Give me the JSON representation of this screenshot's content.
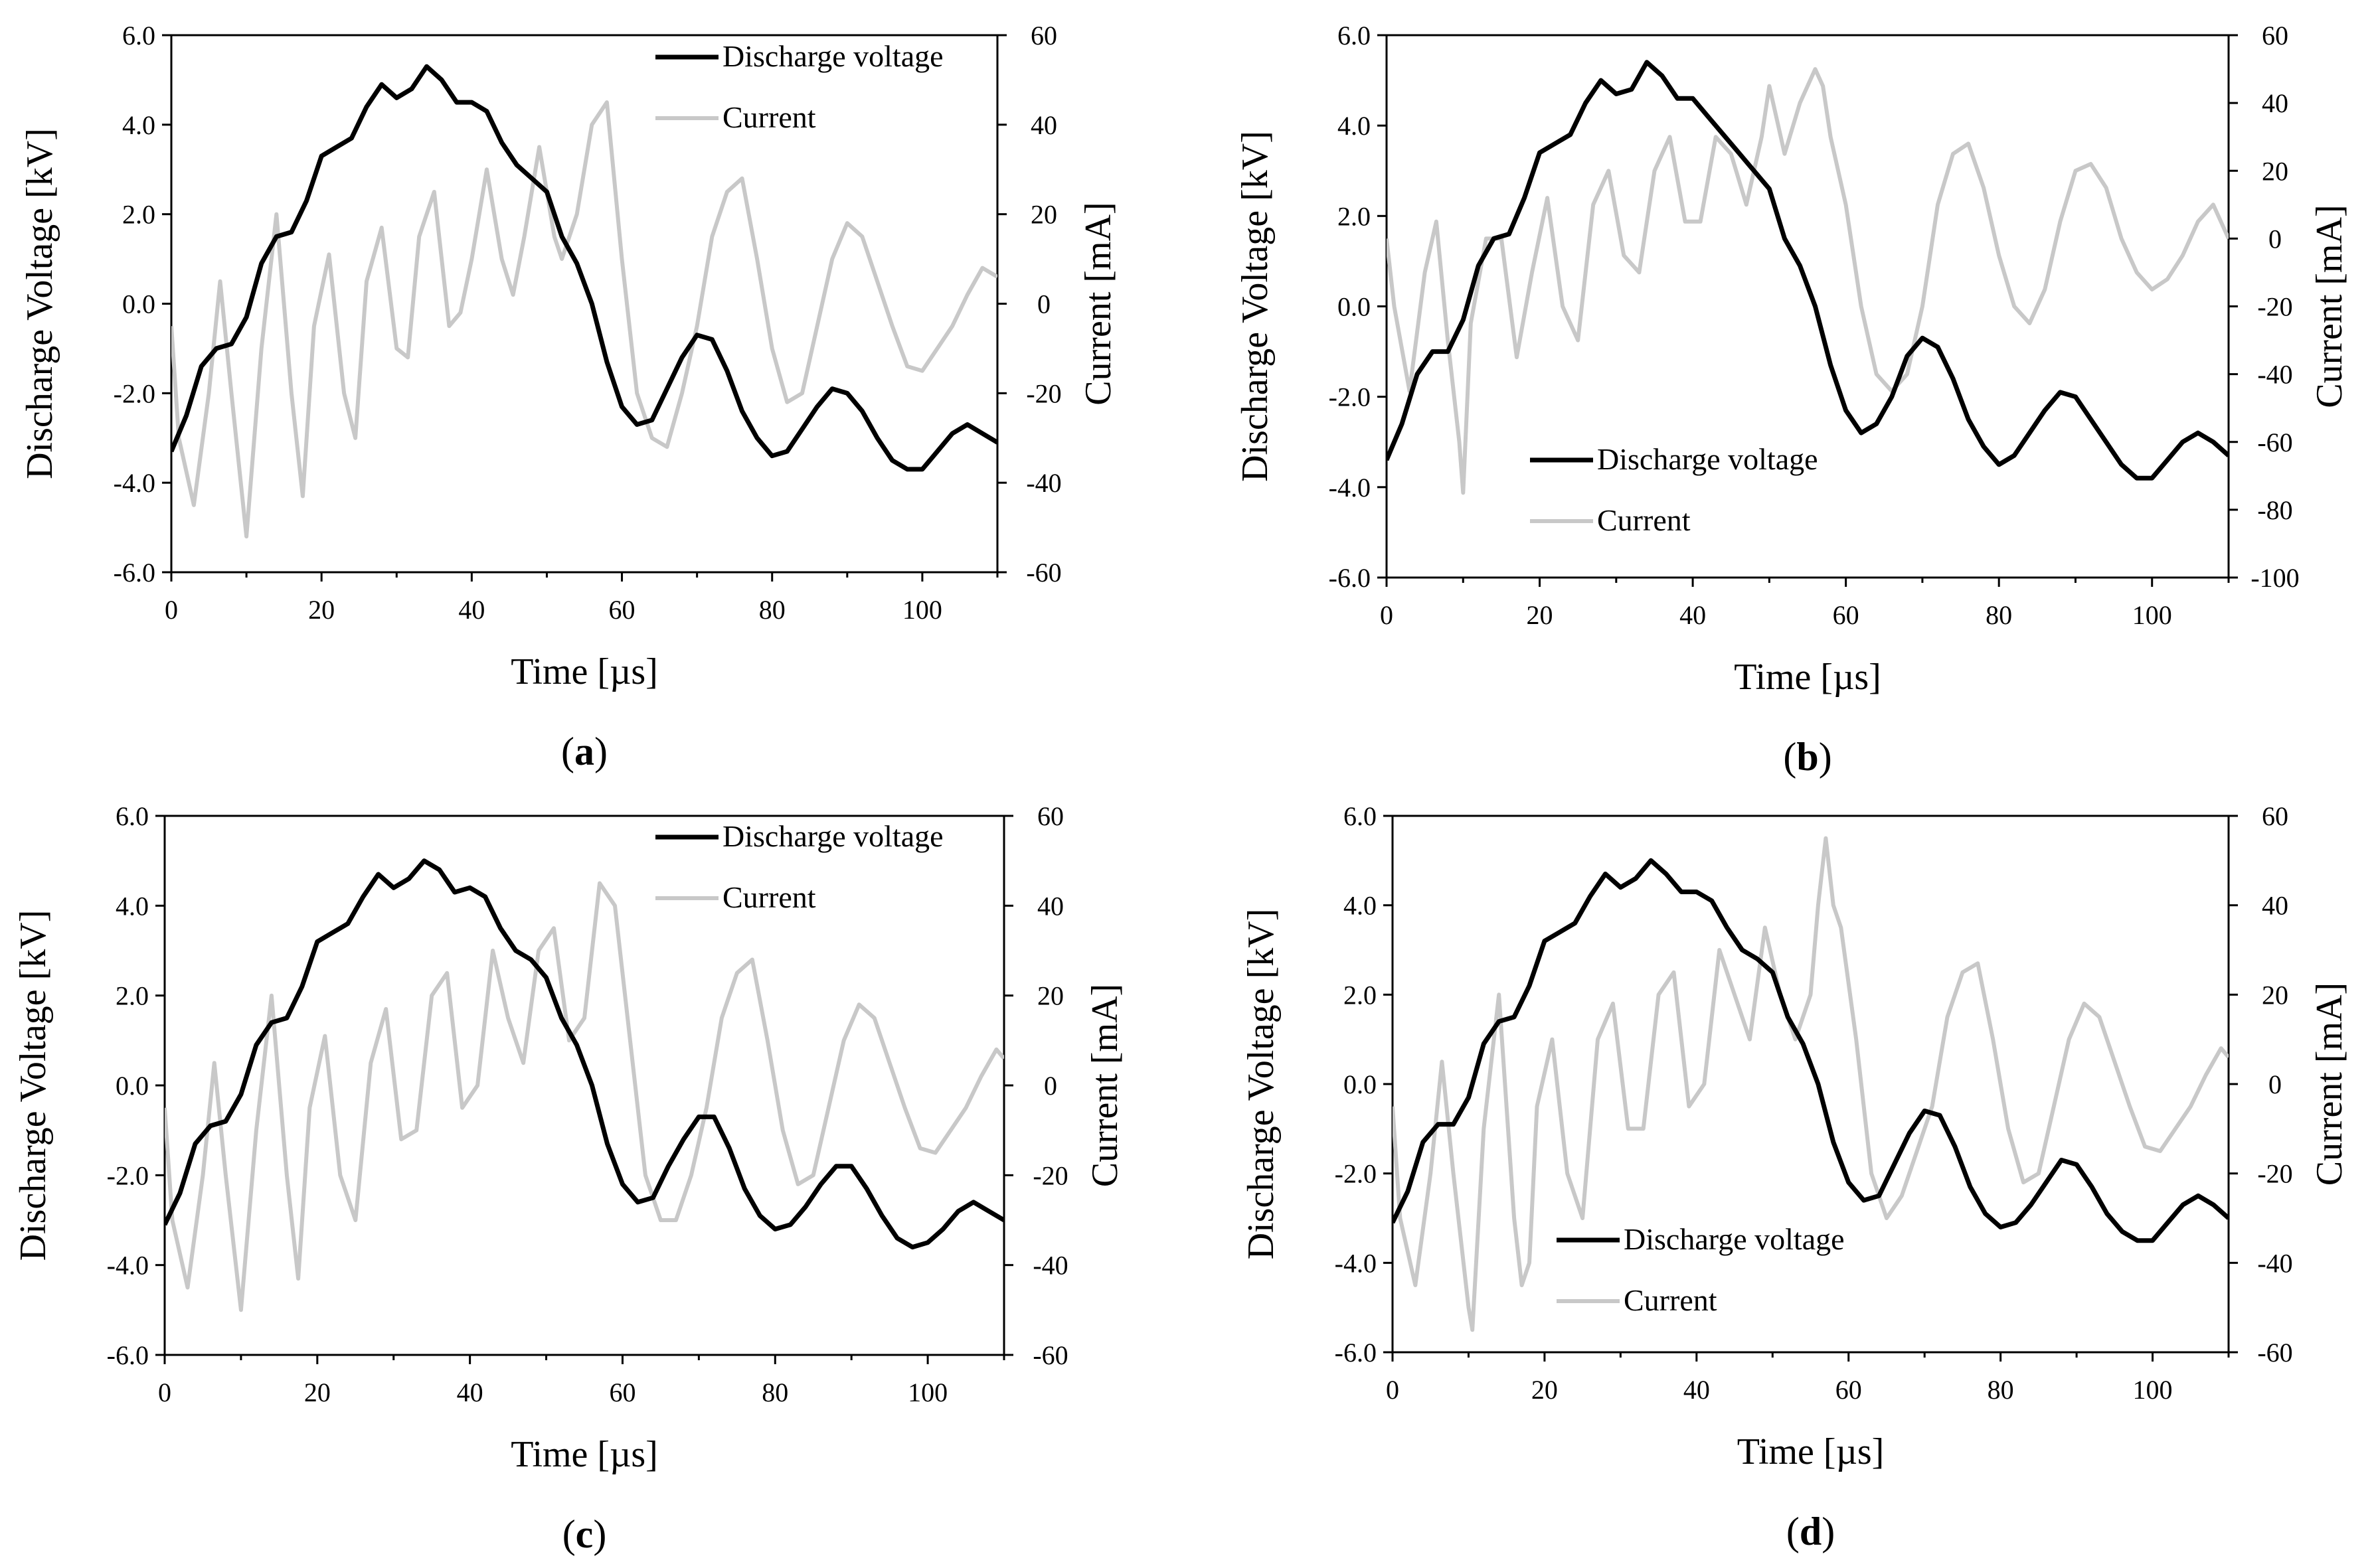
{
  "colors": {
    "voltage": "#000000",
    "current": "#c8c8c8"
  },
  "chart_data": [
    {
      "type": "line",
      "panel_label": "a",
      "title": "",
      "xlabel": "Time [µs]",
      "ylabel": "Discharge  Voltage  [kV]",
      "y2label": "Current  [mA]",
      "xlim": [
        0,
        110
      ],
      "ylim": [
        -6,
        6
      ],
      "y2lim": [
        -60,
        60
      ],
      "xticks": [
        "0",
        "20",
        "40",
        "60",
        "80",
        "100"
      ],
      "yticks": [
        "-6.0",
        "-4.0",
        "-2.0",
        "0.0",
        "2.0",
        "4.0",
        "6.0"
      ],
      "y2ticks": [
        "-60",
        "-40",
        "-20",
        "0",
        "20",
        "40",
        "60"
      ],
      "legend_position": "top-right",
      "series": [
        {
          "name": "Discharge voltage",
          "axis": "left",
          "x": [
            0,
            2,
            4,
            6,
            8,
            10,
            12,
            14,
            16,
            18,
            20,
            22,
            24,
            26,
            28,
            30,
            32,
            34,
            36,
            38,
            40,
            42,
            44,
            46,
            48,
            50,
            52,
            54,
            56,
            58,
            60,
            62,
            64,
            66,
            68,
            70,
            72,
            74,
            76,
            78,
            80,
            82,
            84,
            86,
            88,
            90,
            92,
            94,
            96,
            98,
            100,
            102,
            104,
            106,
            108,
            110
          ],
          "values": [
            -3.3,
            -2.5,
            -1.4,
            -1.0,
            -0.9,
            -0.3,
            0.9,
            1.5,
            1.6,
            2.3,
            3.3,
            3.5,
            3.7,
            4.4,
            4.9,
            4.6,
            4.8,
            5.3,
            5.0,
            4.5,
            4.5,
            4.3,
            3.6,
            3.1,
            2.8,
            2.5,
            1.5,
            0.9,
            0.0,
            -1.3,
            -2.3,
            -2.7,
            -2.6,
            -1.9,
            -1.2,
            -0.7,
            -0.8,
            -1.5,
            -2.4,
            -3.0,
            -3.4,
            -3.3,
            -2.8,
            -2.3,
            -1.9,
            -2.0,
            -2.4,
            -3.0,
            -3.5,
            -3.7,
            -3.7,
            -3.3,
            -2.9,
            -2.7,
            -2.9,
            -3.1
          ]
        },
        {
          "name": "Current",
          "axis": "right",
          "x": [
            0,
            1,
            3,
            5,
            6.5,
            8,
            10,
            12,
            14,
            16,
            17.5,
            19,
            21,
            23,
            24.5,
            26,
            28,
            30,
            31.5,
            33,
            35,
            37,
            38.5,
            40,
            42,
            44,
            45.5,
            47,
            49,
            51,
            52,
            54,
            56,
            58,
            60,
            62,
            64,
            66,
            68,
            70,
            72,
            74,
            76,
            78,
            80,
            82,
            84,
            86,
            88,
            90,
            92,
            94,
            96,
            98,
            100,
            102,
            104,
            106,
            108,
            110
          ],
          "values": [
            -5,
            -30,
            -45,
            -20,
            5,
            -20,
            -52,
            -10,
            20,
            -20,
            -43,
            -5,
            11,
            -20,
            -30,
            5,
            17,
            -10,
            -12,
            15,
            25,
            -5,
            -2,
            10,
            30,
            10,
            2,
            15,
            35,
            15,
            10,
            20,
            40,
            45,
            10,
            -20,
            -30,
            -32,
            -20,
            -5,
            15,
            25,
            28,
            10,
            -10,
            -22,
            -20,
            -5,
            10,
            18,
            15,
            5,
            -5,
            -14,
            -15,
            -10,
            -5,
            2,
            8,
            6
          ]
        }
      ]
    },
    {
      "type": "line",
      "panel_label": "b",
      "title": "",
      "xlabel": "Time [µs]",
      "ylabel": "Discharge  Voltage  [kV]",
      "y2label": "Current  [mA]",
      "xlim": [
        0,
        110
      ],
      "ylim": [
        -6,
        6
      ],
      "y2lim": [
        -100,
        60
      ],
      "xticks": [
        "0",
        "20",
        "40",
        "60",
        "80",
        "100"
      ],
      "yticks": [
        "-6.0",
        "-4.0",
        "-2.0",
        "0.0",
        "2.0",
        "4.0",
        "6.0"
      ],
      "y2ticks": [
        "-100",
        "-80",
        "-60",
        "-40",
        "-20",
        "0",
        "20",
        "40",
        "60"
      ],
      "legend_position": "bottom-left",
      "series": [
        {
          "name": "Discharge voltage",
          "axis": "left",
          "x": [
            0,
            2,
            4,
            6,
            8,
            10,
            12,
            14,
            16,
            18,
            20,
            22,
            24,
            26,
            28,
            30,
            32,
            34,
            36,
            38,
            40,
            42,
            44,
            46,
            48,
            50,
            52,
            54,
            56,
            58,
            60,
            62,
            64,
            66,
            68,
            70,
            72,
            74,
            76,
            78,
            80,
            82,
            84,
            86,
            88,
            90,
            92,
            94,
            96,
            98,
            100,
            102,
            104,
            106,
            108,
            110
          ],
          "values": [
            -3.4,
            -2.6,
            -1.5,
            -1.0,
            -1.0,
            -0.3,
            0.9,
            1.5,
            1.6,
            2.4,
            3.4,
            3.6,
            3.8,
            4.5,
            5.0,
            4.7,
            4.8,
            5.4,
            5.1,
            4.6,
            4.6,
            4.2,
            3.8,
            3.4,
            3.0,
            2.6,
            1.5,
            0.9,
            0.0,
            -1.3,
            -2.3,
            -2.8,
            -2.6,
            -2.0,
            -1.1,
            -0.7,
            -0.9,
            -1.6,
            -2.5,
            -3.1,
            -3.5,
            -3.3,
            -2.8,
            -2.3,
            -1.9,
            -2.0,
            -2.5,
            -3.0,
            -3.5,
            -3.8,
            -3.8,
            -3.4,
            -3.0,
            -2.8,
            -3.0,
            -3.3
          ]
        },
        {
          "name": "Current",
          "axis": "right",
          "x": [
            0,
            1,
            3,
            5,
            6.5,
            8,
            9.5,
            10,
            11,
            13,
            15,
            17,
            19,
            21,
            23,
            25,
            27,
            29,
            31,
            33,
            35,
            37,
            39,
            41,
            43,
            45,
            47,
            49,
            50,
            52,
            54,
            56,
            57,
            58,
            60,
            62,
            64,
            66,
            68,
            70,
            72,
            74,
            76,
            78,
            80,
            82,
            84,
            86,
            88,
            90,
            92,
            94,
            96,
            98,
            100,
            102,
            104,
            106,
            108,
            110
          ],
          "values": [
            0,
            -20,
            -45,
            -10,
            5,
            -30,
            -60,
            -75,
            -25,
            0,
            0,
            -35,
            -10,
            12,
            -20,
            -30,
            10,
            20,
            -5,
            -10,
            20,
            30,
            5,
            5,
            30,
            25,
            10,
            30,
            45,
            25,
            40,
            50,
            45,
            30,
            10,
            -20,
            -40,
            -45,
            -40,
            -20,
            10,
            25,
            28,
            15,
            -5,
            -20,
            -25,
            -15,
            5,
            20,
            22,
            15,
            0,
            -10,
            -15,
            -12,
            -5,
            5,
            10,
            0
          ]
        }
      ]
    },
    {
      "type": "line",
      "panel_label": "c",
      "title": "",
      "xlabel": "Time [µs]",
      "ylabel": "Discharge  Voltage  [kV]",
      "y2label": "Current  [mA]",
      "xlim": [
        0,
        110
      ],
      "ylim": [
        -6,
        6
      ],
      "y2lim": [
        -60,
        60
      ],
      "xticks": [
        "0",
        "20",
        "40",
        "60",
        "80",
        "100"
      ],
      "yticks": [
        "-6.0",
        "-4.0",
        "-2.0",
        "0.0",
        "2.0",
        "4.0",
        "6.0"
      ],
      "y2ticks": [
        "-60",
        "-40",
        "-20",
        "0",
        "20",
        "40",
        "60"
      ],
      "legend_position": "top-right",
      "series": [
        {
          "name": "Discharge voltage",
          "axis": "left",
          "x": [
            0,
            2,
            4,
            6,
            8,
            10,
            12,
            14,
            16,
            18,
            20,
            22,
            24,
            26,
            28,
            30,
            32,
            34,
            36,
            38,
            40,
            42,
            44,
            46,
            48,
            50,
            52,
            54,
            56,
            58,
            60,
            62,
            64,
            66,
            68,
            70,
            72,
            74,
            76,
            78,
            80,
            82,
            84,
            86,
            88,
            90,
            92,
            94,
            96,
            98,
            100,
            102,
            104,
            106,
            108,
            110
          ],
          "values": [
            -3.1,
            -2.4,
            -1.3,
            -0.9,
            -0.8,
            -0.2,
            0.9,
            1.4,
            1.5,
            2.2,
            3.2,
            3.4,
            3.6,
            4.2,
            4.7,
            4.4,
            4.6,
            5.0,
            4.8,
            4.3,
            4.4,
            4.2,
            3.5,
            3.0,
            2.8,
            2.4,
            1.5,
            0.9,
            0.0,
            -1.3,
            -2.2,
            -2.6,
            -2.5,
            -1.8,
            -1.2,
            -0.7,
            -0.7,
            -1.4,
            -2.3,
            -2.9,
            -3.2,
            -3.1,
            -2.7,
            -2.2,
            -1.8,
            -1.8,
            -2.3,
            -2.9,
            -3.4,
            -3.6,
            -3.5,
            -3.2,
            -2.8,
            -2.6,
            -2.8,
            -3.0
          ]
        },
        {
          "name": "Current",
          "axis": "right",
          "x": [
            0,
            1,
            3,
            5,
            6.5,
            8,
            10,
            12,
            14,
            16,
            17.5,
            19,
            21,
            23,
            25,
            27,
            29,
            31,
            33,
            35,
            37,
            39,
            41,
            43,
            45,
            47,
            49,
            51,
            53,
            55,
            57,
            59,
            61,
            63,
            65,
            67,
            69,
            71,
            73,
            75,
            77,
            79,
            81,
            83,
            85,
            87,
            89,
            91,
            93,
            95,
            97,
            99,
            101,
            103,
            105,
            107,
            109,
            110
          ],
          "values": [
            -5,
            -30,
            -45,
            -20,
            5,
            -20,
            -50,
            -10,
            20,
            -20,
            -43,
            -5,
            11,
            -20,
            -30,
            5,
            17,
            -12,
            -10,
            20,
            25,
            -5,
            0,
            30,
            15,
            5,
            30,
            35,
            10,
            15,
            45,
            40,
            10,
            -20,
            -30,
            -30,
            -20,
            -5,
            15,
            25,
            28,
            10,
            -10,
            -22,
            -20,
            -5,
            10,
            18,
            15,
            5,
            -5,
            -14,
            -15,
            -10,
            -5,
            2,
            8,
            6
          ]
        }
      ]
    },
    {
      "type": "line",
      "panel_label": "d",
      "title": "",
      "xlabel": "Time [µs]",
      "ylabel": "Discharge  Voltage  [kV]",
      "y2label": "Current  [mA]",
      "xlim": [
        0,
        110
      ],
      "ylim": [
        -6,
        6
      ],
      "y2lim": [
        -60,
        60
      ],
      "xticks": [
        "0",
        "20",
        "40",
        "60",
        "80",
        "100"
      ],
      "yticks": [
        "-6.0",
        "-4.0",
        "-2.0",
        "0.0",
        "2.0",
        "4.0",
        "6.0"
      ],
      "y2ticks": [
        "-60",
        "-40",
        "-20",
        "0",
        "20",
        "40",
        "60"
      ],
      "legend_position": "bottom-left",
      "series": [
        {
          "name": "Discharge voltage",
          "axis": "left",
          "x": [
            0,
            2,
            4,
            6,
            8,
            10,
            12,
            14,
            16,
            18,
            20,
            22,
            24,
            26,
            28,
            30,
            32,
            34,
            36,
            38,
            40,
            42,
            44,
            46,
            48,
            50,
            52,
            54,
            56,
            58,
            60,
            62,
            64,
            66,
            68,
            70,
            72,
            74,
            76,
            78,
            80,
            82,
            84,
            86,
            88,
            90,
            92,
            94,
            96,
            98,
            100,
            102,
            104,
            106,
            108,
            110
          ],
          "values": [
            -3.1,
            -2.4,
            -1.3,
            -0.9,
            -0.9,
            -0.3,
            0.9,
            1.4,
            1.5,
            2.2,
            3.2,
            3.4,
            3.6,
            4.2,
            4.7,
            4.4,
            4.6,
            5.0,
            4.7,
            4.3,
            4.3,
            4.1,
            3.5,
            3.0,
            2.8,
            2.5,
            1.5,
            0.9,
            0.0,
            -1.3,
            -2.2,
            -2.6,
            -2.5,
            -1.8,
            -1.1,
            -0.6,
            -0.7,
            -1.4,
            -2.3,
            -2.9,
            -3.2,
            -3.1,
            -2.7,
            -2.2,
            -1.7,
            -1.8,
            -2.3,
            -2.9,
            -3.3,
            -3.5,
            -3.5,
            -3.1,
            -2.7,
            -2.5,
            -2.7,
            -3.0
          ]
        },
        {
          "name": "Current",
          "axis": "right",
          "x": [
            0,
            1,
            3,
            5,
            6.5,
            8,
            10,
            10.5,
            12,
            14,
            16,
            17,
            18,
            19,
            21,
            23,
            25,
            27,
            29,
            31,
            33,
            35,
            37,
            39,
            41,
            43,
            45,
            47,
            49,
            51,
            53,
            55,
            56,
            57,
            58,
            59,
            61,
            63,
            65,
            67,
            69,
            71,
            73,
            75,
            77,
            79,
            81,
            83,
            85,
            87,
            89,
            91,
            93,
            95,
            97,
            99,
            101,
            103,
            105,
            107,
            109,
            110
          ],
          "values": [
            -5,
            -30,
            -45,
            -20,
            5,
            -20,
            -50,
            -55,
            -10,
            20,
            -30,
            -45,
            -40,
            -5,
            10,
            -20,
            -30,
            10,
            18,
            -10,
            -10,
            20,
            25,
            -5,
            0,
            30,
            20,
            10,
            35,
            20,
            10,
            20,
            40,
            55,
            40,
            35,
            10,
            -20,
            -30,
            -25,
            -15,
            -5,
            15,
            25,
            27,
            10,
            -10,
            -22,
            -20,
            -5,
            10,
            18,
            15,
            5,
            -5,
            -14,
            -15,
            -10,
            -5,
            2,
            8,
            6
          ]
        }
      ]
    }
  ]
}
